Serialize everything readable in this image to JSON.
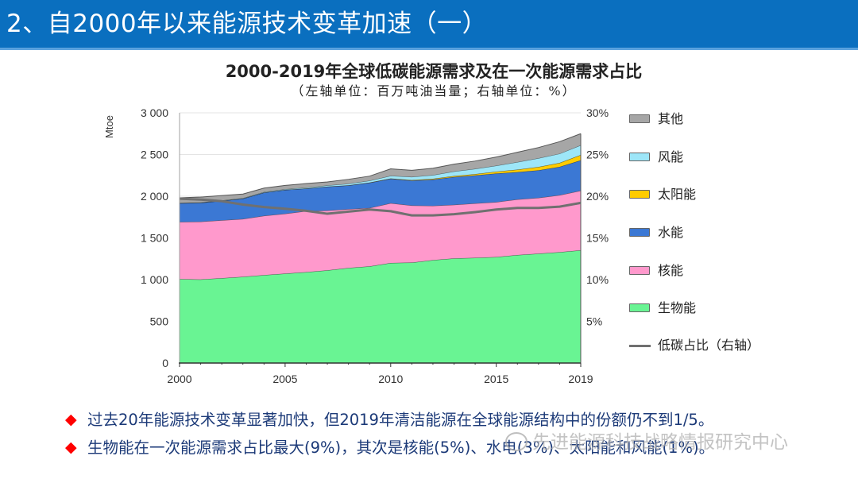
{
  "header": {
    "title": "2、自2000年以来能源技术变革加速（一）",
    "background_color": "#0A6FBF"
  },
  "chart_title": "2000-2019年全球低碳能源需求及在一次能源需求占比",
  "chart_subtitle": "（左轴单位：百万吨油当量；右轴单位：%）",
  "chart_data": {
    "type": "area",
    "title": "2000-2019年全球低碳能源需求及在一次能源需求占比",
    "subtitle": "（左轴单位：百万吨油当量；右轴单位：%）",
    "xlabel": "",
    "ylabel": "Mtoe",
    "y2label": "%",
    "categories": [
      2000,
      2001,
      2002,
      2003,
      2004,
      2005,
      2006,
      2007,
      2008,
      2009,
      2010,
      2011,
      2012,
      2013,
      2014,
      2015,
      2016,
      2017,
      2018,
      2019
    ],
    "ylim": [
      0,
      3000
    ],
    "y2lim": [
      0,
      30
    ],
    "x_tick_labels": [
      "2000",
      "2005",
      "2010",
      "2015",
      "2019"
    ],
    "x_tick_years": [
      2000,
      2005,
      2010,
      2015,
      2019
    ],
    "y_ticks": [
      0,
      500,
      1000,
      1500,
      2000,
      2500,
      3000
    ],
    "y_tick_labels": [
      "0",
      "500",
      "1 000",
      "1 500",
      "2 000",
      "2 500",
      "3 000"
    ],
    "y2_ticks": [
      5,
      10,
      15,
      20,
      25,
      30
    ],
    "y2_tick_labels": [
      "5%",
      "10%",
      "15%",
      "20%",
      "25%",
      "30%"
    ],
    "grid": true,
    "stacked": true,
    "legend_position": "right",
    "series": [
      {
        "key": "biomass",
        "name": "生物能",
        "color": "#69F493",
        "values": [
          1007,
          1003,
          1018,
          1035,
          1055,
          1073,
          1090,
          1112,
          1140,
          1160,
          1200,
          1205,
          1235,
          1255,
          1262,
          1272,
          1295,
          1312,
          1330,
          1352
        ]
      },
      {
        "key": "nuclear",
        "name": "核能",
        "color": "#FF99CC",
        "values": [
          685,
          692,
          694,
          692,
          710,
          717,
          732,
          717,
          705,
          700,
          717,
          684,
          651,
          643,
          652,
          658,
          667,
          669,
          683,
          715
        ]
      },
      {
        "key": "hydro",
        "name": "水能",
        "color": "#3B78D4",
        "values": [
          225,
          227,
          233,
          244,
          279,
          286,
          270,
          285,
          285,
          302,
          293,
          299,
          314,
          333,
          336,
          343,
          327,
          330,
          339,
          364
        ]
      },
      {
        "key": "solar",
        "name": "太阳能",
        "color": "#FFCC00",
        "values": [
          0,
          0,
          0,
          0,
          0,
          0,
          1,
          1,
          1,
          2,
          3,
          6,
          9,
          12,
          16,
          22,
          30,
          40,
          48,
          64
        ]
      },
      {
        "key": "wind",
        "name": "风能",
        "color": "#9DE6F8",
        "values": [
          3,
          4,
          5,
          6,
          7,
          9,
          11,
          15,
          19,
          23,
          32,
          38,
          45,
          55,
          62,
          72,
          90,
          105,
          110,
          117
        ]
      },
      {
        "key": "other",
        "name": "其他",
        "color": "#A6A6A6",
        "values": [
          61,
          64,
          58,
          49,
          47,
          45,
          48,
          41,
          53,
          54,
          83,
          79,
          82,
          86,
          94,
          103,
          118,
          128,
          144,
          138
        ]
      }
    ],
    "line_series": {
      "key": "low-carbon-share",
      "name": "低碳占比（右轴）",
      "axis": "right",
      "color": "#707070",
      "values": [
        19.7,
        19.6,
        19.4,
        19.0,
        18.7,
        18.5,
        18.25,
        17.9,
        18.15,
        18.4,
        18.2,
        17.7,
        17.7,
        17.85,
        18.1,
        18.4,
        18.6,
        18.6,
        18.75,
        19.2
      ]
    }
  },
  "legend": {
    "items": [
      {
        "label": "其他",
        "color": "#A6A6A6",
        "kind": "area"
      },
      {
        "label": "风能",
        "color": "#9DE6F8",
        "kind": "area"
      },
      {
        "label": "太阳能",
        "color": "#FFCC00",
        "kind": "area"
      },
      {
        "label": "水能",
        "color": "#3B78D4",
        "kind": "area"
      },
      {
        "label": "核能",
        "color": "#FF99CC",
        "kind": "area"
      },
      {
        "label": "生物能",
        "color": "#69F493",
        "kind": "area"
      },
      {
        "label": "低碳占比（右轴）",
        "color": "#707070",
        "kind": "line"
      }
    ]
  },
  "axis_unit_label": "Mtoe",
  "bullets": [
    {
      "icon": "diamond-icon",
      "glyph": "◆",
      "text": "过去20年能源技术变革显著加快，但2019年清洁能源在全球能源结构中的份额仍不到1/5。"
    },
    {
      "icon": "diamond-icon",
      "glyph": "◆",
      "text": "生物能在一次能源需求占比最大(9%)，其次是核能(5%)、水电(3%)、太阳能和风能(1%)。"
    }
  ],
  "watermark": {
    "icon": "wechat-icon",
    "text": "先进能源科技战略情报研究中心"
  },
  "colors": {
    "accent": "#0A6FBF",
    "bullet": "#FF0000",
    "body_text": "#1C3A78"
  }
}
